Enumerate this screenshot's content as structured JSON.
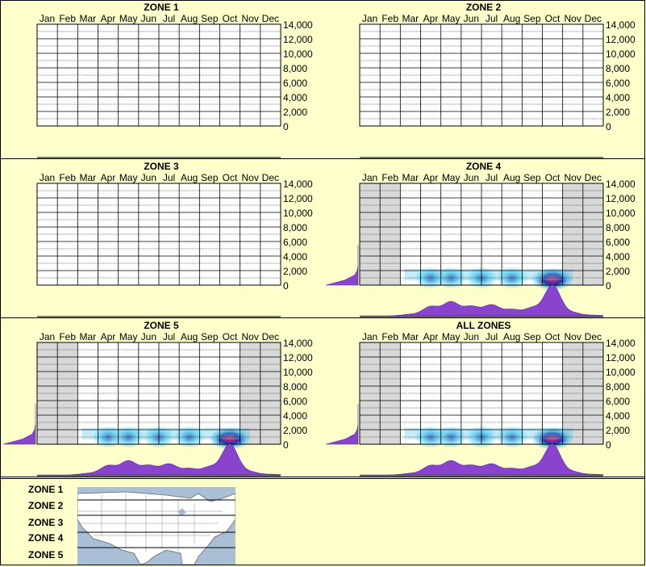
{
  "months": [
    "Jan",
    "Feb",
    "Mar",
    "Apr",
    "May",
    "Jun",
    "Jul",
    "Aug",
    "Sep",
    "Oct",
    "Nov",
    "Dec"
  ],
  "y_ticks": [
    "14,000",
    "12,000",
    "10,000",
    "8,000",
    "6,000",
    "4,000",
    "2,000",
    "0"
  ],
  "colors": {
    "background": "#ffffcc",
    "density": "#8844cc",
    "shade": "#d8d8d8",
    "heat_low": "#55ccee",
    "heat_mid": "#2233aa",
    "heat_high": "#ff2277"
  },
  "panels": [
    {
      "title": "ZONE 1",
      "has_data": false
    },
    {
      "title": "ZONE 2",
      "has_data": false
    },
    {
      "title": "ZONE 3",
      "has_data": false
    },
    {
      "title": "ZONE 4",
      "has_data": true
    },
    {
      "title": "ZONE 5",
      "has_data": true
    },
    {
      "title": "ALL ZONES",
      "has_data": true
    }
  ],
  "legend": {
    "zones": [
      "ZONE 1",
      "ZONE 2",
      "ZONE 3",
      "ZONE 4",
      "ZONE 5"
    ]
  },
  "chart_data": {
    "type": "heatmap",
    "x_categories": [
      "Jan",
      "Feb",
      "Mar",
      "Apr",
      "May",
      "Jun",
      "Jul",
      "Aug",
      "Sep",
      "Oct",
      "Nov",
      "Dec"
    ],
    "ylim": [
      0,
      14000
    ],
    "y_ticks": [
      0,
      2000,
      4000,
      6000,
      8000,
      10000,
      12000,
      14000
    ],
    "grid": true,
    "panels": [
      {
        "title": "ZONE 1",
        "hot_spots": [],
        "shaded_months": [],
        "month_density": []
      },
      {
        "title": "ZONE 2",
        "hot_spots": [],
        "shaded_months": [],
        "month_density": []
      },
      {
        "title": "ZONE 3",
        "hot_spots": [],
        "shaded_months": [],
        "month_density": []
      },
      {
        "title": "ZONE 4",
        "shaded_months": [
          "Jan",
          "Feb",
          "Nov",
          "Dec"
        ],
        "hot_spots": [
          {
            "month": 3.5,
            "y": 1000,
            "intensity": 0.6
          },
          {
            "month": 4.5,
            "y": 1000,
            "intensity": 0.5
          },
          {
            "month": 6.0,
            "y": 1000,
            "intensity": 0.5
          },
          {
            "month": 7.5,
            "y": 1000,
            "intensity": 0.5
          },
          {
            "month": 9.5,
            "y": 800,
            "intensity": 1.0
          }
        ],
        "month_density": [
          0,
          0,
          0.05,
          0.3,
          0.45,
          0.3,
          0.35,
          0.2,
          0.25,
          1.0,
          0.1,
          0.02
        ],
        "value_density": [
          1.0,
          0.4,
          0.1,
          0.02,
          0,
          0,
          0,
          0
        ]
      },
      {
        "title": "ZONE 5",
        "shaded_months": [
          "Jan",
          "Feb",
          "Nov",
          "Dec"
        ],
        "hot_spots": [
          {
            "month": 3.5,
            "y": 1000,
            "intensity": 0.6
          },
          {
            "month": 4.5,
            "y": 1000,
            "intensity": 0.5
          },
          {
            "month": 6.0,
            "y": 1000,
            "intensity": 0.5
          },
          {
            "month": 7.5,
            "y": 1000,
            "intensity": 0.5
          },
          {
            "month": 9.5,
            "y": 800,
            "intensity": 1.0
          }
        ],
        "month_density": [
          0,
          0,
          0.05,
          0.3,
          0.45,
          0.3,
          0.35,
          0.2,
          0.25,
          1.0,
          0.1,
          0.02
        ],
        "value_density": [
          1.0,
          0.4,
          0.1,
          0.02,
          0,
          0,
          0,
          0
        ]
      },
      {
        "title": "ALL ZONES",
        "shaded_months": [
          "Jan",
          "Feb",
          "Nov",
          "Dec"
        ],
        "hot_spots": [
          {
            "month": 3.5,
            "y": 1000,
            "intensity": 0.6
          },
          {
            "month": 4.5,
            "y": 1000,
            "intensity": 0.5
          },
          {
            "month": 6.0,
            "y": 1000,
            "intensity": 0.5
          },
          {
            "month": 7.5,
            "y": 1000,
            "intensity": 0.5
          },
          {
            "month": 9.5,
            "y": 800,
            "intensity": 1.0
          }
        ],
        "month_density": [
          0,
          0,
          0.05,
          0.3,
          0.45,
          0.3,
          0.35,
          0.2,
          0.25,
          1.0,
          0.1,
          0.02
        ],
        "value_density": [
          1.0,
          0.4,
          0.1,
          0.02,
          0,
          0,
          0,
          0
        ]
      }
    ]
  }
}
